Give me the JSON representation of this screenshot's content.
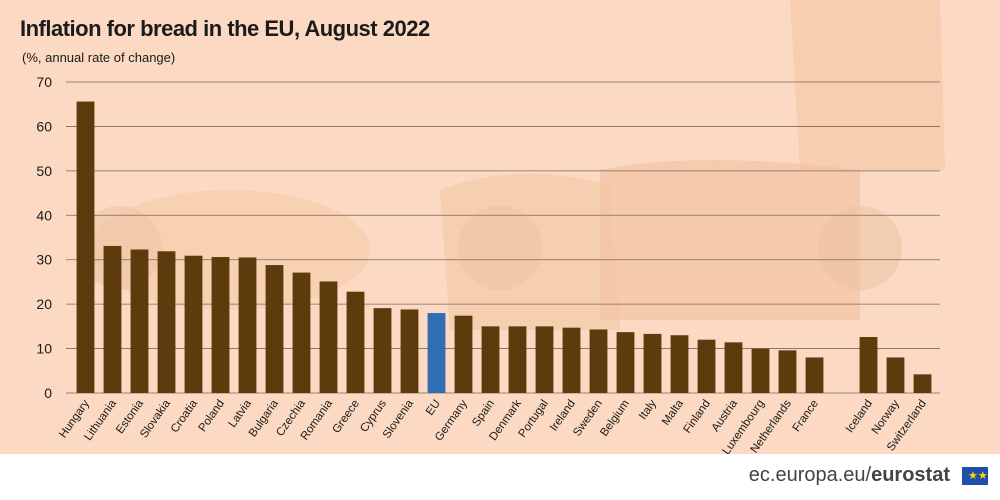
{
  "chart_data": {
    "type": "bar",
    "title": "Inflation for bread in the EU, August 2022",
    "subtitle": "(%, annual rate of change)",
    "ylim": [
      0,
      70
    ],
    "yticks": [
      0,
      10,
      20,
      30,
      40,
      50,
      60,
      70
    ],
    "grid": true,
    "categories": [
      "Hungary",
      "Lithuania",
      "Estonia",
      "Slovakia",
      "Croatia",
      "Poland",
      "Latvia",
      "Bulgaria",
      "Czechia",
      "Romania",
      "Greece",
      "Cyprus",
      "Slovenia",
      "EU",
      "Germany",
      "Spain",
      "Denmark",
      "Portugal",
      "Ireland",
      "Sweden",
      "Belgium",
      "Italy",
      "Malta",
      "Finland",
      "Austria",
      "Luxembourg",
      "Netherlands",
      "France",
      "Iceland",
      "Norway",
      "Switzerland"
    ],
    "values": [
      65.6,
      33.1,
      32.3,
      31.9,
      30.9,
      30.6,
      30.5,
      28.8,
      27.1,
      25.1,
      22.8,
      19.1,
      18.8,
      18.0,
      17.4,
      15.0,
      15.0,
      15.0,
      14.7,
      14.3,
      13.7,
      13.3,
      13.0,
      12.0,
      11.4,
      10.0,
      9.6,
      8.0,
      12.6,
      8.0,
      4.2
    ],
    "groups": [
      "eu",
      "eu",
      "eu",
      "eu",
      "eu",
      "eu",
      "eu",
      "eu",
      "eu",
      "eu",
      "eu",
      "eu",
      "eu",
      "agg",
      "eu",
      "eu",
      "eu",
      "eu",
      "eu",
      "eu",
      "eu",
      "eu",
      "eu",
      "eu",
      "eu",
      "eu",
      "eu",
      "eu",
      "efta",
      "efta",
      "efta"
    ]
  },
  "colors": {
    "bar": "#5c3b0c",
    "highlight": "#2f6db5",
    "grid": "#7a6a5e",
    "background": "#fbd9c2"
  },
  "footer": {
    "site": "ec.europa.eu/",
    "brand": "eurostat"
  }
}
